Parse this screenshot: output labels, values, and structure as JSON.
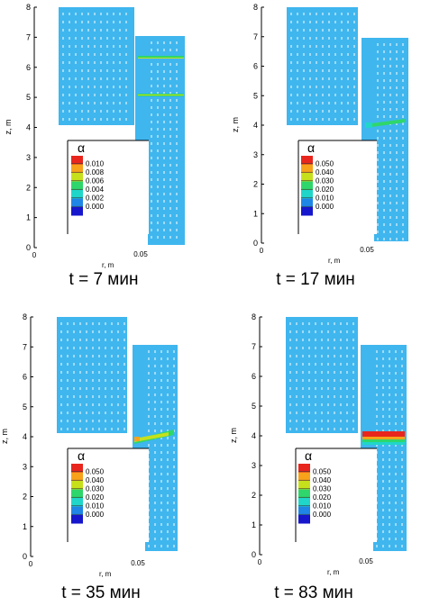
{
  "colors": {
    "fluid": "#3fb6ee",
    "vectors": "#ffffff",
    "axis": "#000000"
  },
  "axes": {
    "ylabel": "z, m",
    "xlabel": "r, m",
    "x_tick": "0.05",
    "x_zero": "0",
    "y_ticks": [
      "0",
      "1",
      "2",
      "3",
      "4",
      "5",
      "6",
      "7",
      "8"
    ]
  },
  "legend": {
    "title": "α",
    "colors": [
      "#e8261d",
      "#f7a21a",
      "#c6e01c",
      "#2fd66b",
      "#1fd6c9",
      "#1f86e6",
      "#1616cc"
    ]
  },
  "panels": [
    {
      "caption": "t = 7 мин",
      "legend_labels": [
        "0.010",
        "0.008",
        "0.006",
        "0.004",
        "0.002",
        "0.000"
      ]
    },
    {
      "caption": "t = 17 мин",
      "legend_labels": [
        "0.050",
        "0.040",
        "0.030",
        "0.020",
        "0.010",
        "0.000"
      ]
    },
    {
      "caption": "t = 35 мин",
      "legend_labels": [
        "0.050",
        "0.040",
        "0.030",
        "0.020",
        "0.010",
        "0.000"
      ]
    },
    {
      "caption": "t = 83 мин",
      "legend_labels": [
        "0.050",
        "0.040",
        "0.030",
        "0.020",
        "0.010",
        "0.000"
      ]
    }
  ]
}
